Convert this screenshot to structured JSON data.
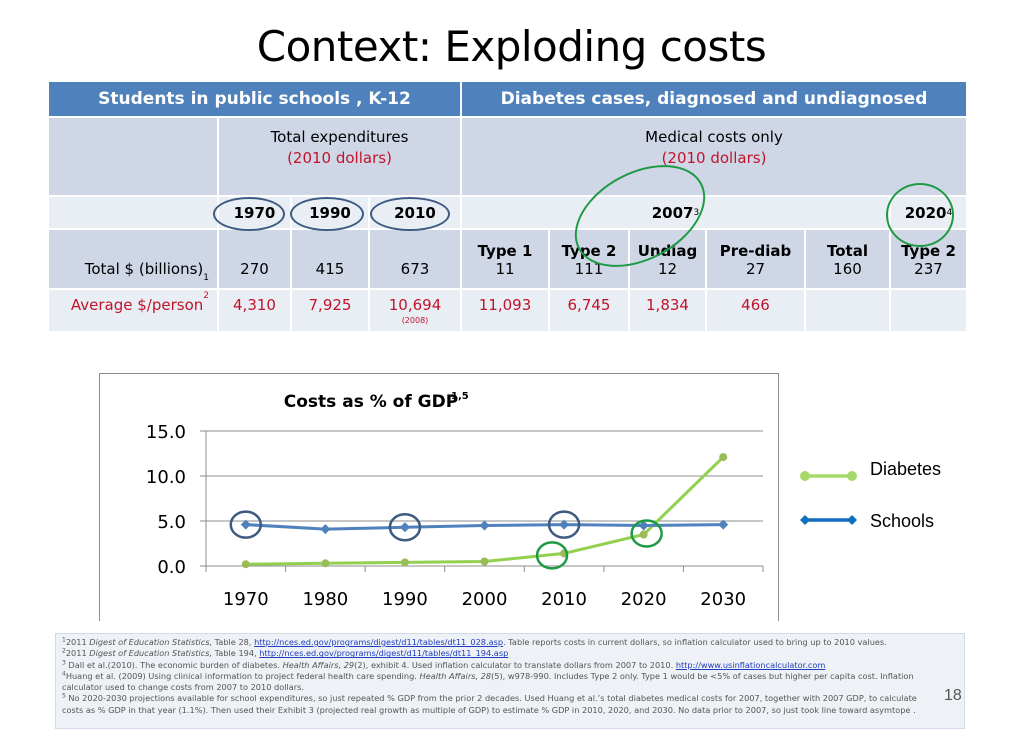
{
  "slide": {
    "title": "Context: Exploding costs",
    "page_number": "18"
  },
  "table": {
    "headers": {
      "schools": "Students in public schools , K-12",
      "diabetes": "Diabetes cases, diagnosed and undiagnosed"
    },
    "subheaders": {
      "schools_line1": "Total expenditures",
      "schools_line2": "(2010 dollars)",
      "diabetes_line1": "Medical costs only",
      "diabetes_line2": "(2010 dollars)"
    },
    "years": {
      "y1970": "1970",
      "y1990": "1990",
      "y2010": "2010",
      "y2007": "2007",
      "y2007_sup": "3",
      "y2020": "2020",
      "y2020_sup": "4"
    },
    "diabetes_categories": [
      "Type 1",
      "Type 2",
      "Undiag",
      "Pre-diab",
      "Total",
      "Type 2"
    ],
    "totals_row": {
      "label": "Total $ (billions)",
      "label_sup": "1",
      "values": [
        "270",
        "415",
        "673",
        "11",
        "111",
        "12",
        "27",
        "160",
        "237"
      ]
    },
    "average_row": {
      "label": "Average $/person",
      "label_sup": "2",
      "values": [
        "4,310",
        "7,925",
        "10,694",
        "11,093",
        "6,745",
        "1,834",
        "466",
        "",
        ""
      ],
      "note_2010": "(2008)"
    },
    "colors": {
      "header": "#4f81bd",
      "dark_row": "#cfd7e7",
      "light_row": "#e9edf4",
      "red_text": "#c0142a",
      "ring_blue": "#3d5a80",
      "ring_green": "#1e9a45"
    }
  },
  "chart_data": {
    "type": "line",
    "title": "Costs as % of GDP",
    "title_sup": "1,5",
    "xlabel": "",
    "ylabel": "",
    "x": [
      "1970",
      "1980",
      "1990",
      "2000",
      "2010",
      "2020",
      "2030"
    ],
    "yticks": [
      "0.0",
      "5.0",
      "10.0",
      "15.0"
    ],
    "ylim": [
      0,
      15
    ],
    "grid": true,
    "legend_position": "right",
    "series": [
      {
        "name": "Diabetes",
        "color": "#92d050",
        "marker_color": "#9bbb59",
        "marker": "circle",
        "values": [
          0.2,
          0.3,
          0.4,
          0.5,
          1.4,
          3.5,
          12.1
        ]
      },
      {
        "name": "Schools",
        "color": "#4f81bd",
        "marker_color": "#4f81bd",
        "marker": "diamond",
        "values": [
          4.6,
          4.1,
          4.3,
          4.5,
          4.6,
          4.5,
          4.6
        ]
      }
    ],
    "annotations": [
      {
        "type": "circle",
        "color": "blue",
        "series": "Schools",
        "x": "1970"
      },
      {
        "type": "circle",
        "color": "blue",
        "series": "Schools",
        "x": "1990"
      },
      {
        "type": "circle",
        "color": "blue",
        "series": "Schools",
        "x": "2010"
      },
      {
        "type": "circle",
        "color": "green",
        "series": "Diabetes",
        "x": "2010"
      },
      {
        "type": "circle",
        "color": "green",
        "series": "Diabetes",
        "x": "2020"
      }
    ]
  },
  "footnotes": [
    {
      "sup": "1",
      "pre": "2011 ",
      "italic": "Digest of Education Statistics,",
      "mid": " Table 28, ",
      "link": "http://nces.ed.gov/programs/digest/d11/tables/dt11_028.asp",
      "post": ". Table reports  costs in current dollars, so inflation calculator used to bring up to 2010 values."
    },
    {
      "sup": "2",
      "pre": "2011 ",
      "italic": "Digest of Education Statistics,",
      "mid": " Table 194, ",
      "link": "http://nces.ed.gov/programs/digest/d11/tables/dt11_194.asp",
      "post": ""
    },
    {
      "sup": "3",
      "pre": " Dall et al.(2010). The economic burden of diabetes. ",
      "italic": "Health Affairs, 29",
      "mid": "(2), exhibit 4. Used inflation calculator to translate dollars from 2007 to 2010. ",
      "link": "http://www.usinflationcalculator.com",
      "post": ""
    },
    {
      "sup": "4",
      "pre": "Huang et al. (2009) Using clinical information to project federal health care spending. ",
      "italic": "Health Affairs, 28",
      "mid": "(5), w978-990. Includes Type 2 only. Type 1 would be <5% of cases but  higher per capita cost. Inflation",
      "link": "",
      "post": ""
    },
    {
      "sup": "",
      "pre": "calculator used to change costs from 2007 to 2010 dollars.",
      "italic": "",
      "mid": "",
      "link": "",
      "post": ""
    },
    {
      "sup": "5",
      "pre": " No 2020-2030 projections available for school expenditures, so just repeated % GDP from the prior 2 decades. Used Huang et al.’s total diabetes medical costs for 2007, together with 2007 GDP, to calculate",
      "italic": "",
      "mid": "",
      "link": "",
      "post": ""
    },
    {
      "sup": "",
      "pre": "costs as % GDP in that year (1.1%). Then used their Exhibit 3 (projected real growth as multiple of GDP) to estimate % GDP in 2010, 2020, and 2030.  No data prior to 2007, so just took line toward asymtope .",
      "italic": "",
      "mid": "",
      "link": "",
      "post": ""
    }
  ]
}
